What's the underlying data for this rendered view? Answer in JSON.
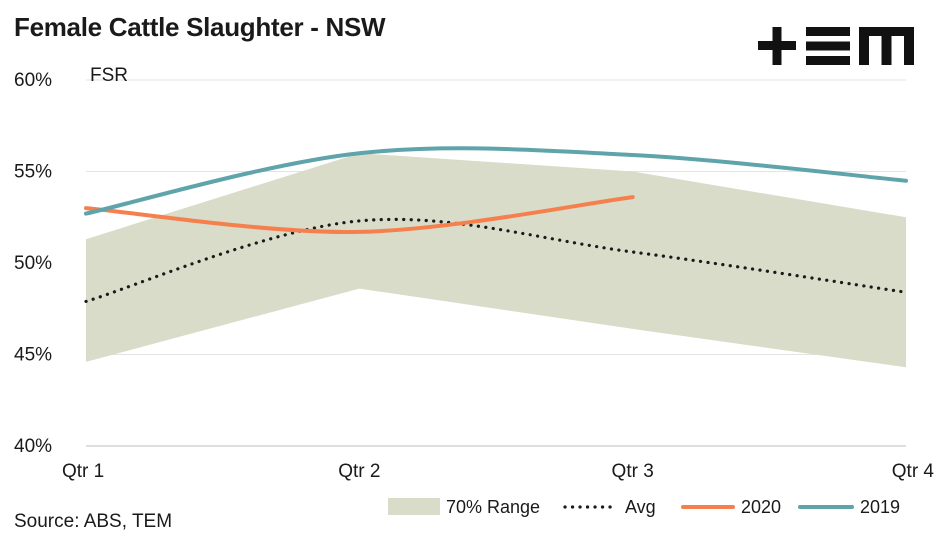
{
  "title": "Female Cattle Slaughter - NSW",
  "source": "Source: ABS, TEM",
  "logo": "+≡M",
  "chart_data": {
    "type": "line",
    "ylabel": "FSR",
    "categories": [
      "Qtr 1",
      "Qtr 2",
      "Qtr 3",
      "Qtr 4"
    ],
    "ylim": [
      40,
      60
    ],
    "yticks": [
      40,
      45,
      50,
      55,
      60
    ],
    "ytick_labels": [
      "40%",
      "45%",
      "50%",
      "55%",
      "60%"
    ],
    "grid": "horizontal",
    "legend_position": "bottom-right",
    "range": {
      "name": "70% Range",
      "low": [
        44.6,
        48.6,
        46.4,
        44.3
      ],
      "high": [
        51.3,
        56.0,
        55.0,
        52.5
      ],
      "color": "#d9dcc8"
    },
    "series": [
      {
        "name": "Avg",
        "values": [
          47.9,
          52.3,
          50.6,
          48.4
        ],
        "color": "#1a1a1a",
        "style": "dotted"
      },
      {
        "name": "2020",
        "values": [
          53.0,
          51.7,
          53.6,
          null
        ],
        "color": "#f5804e",
        "style": "solid"
      },
      {
        "name": "2019",
        "values": [
          52.7,
          56.0,
          55.9,
          54.5
        ],
        "color": "#5fa4ab",
        "style": "solid"
      }
    ]
  }
}
